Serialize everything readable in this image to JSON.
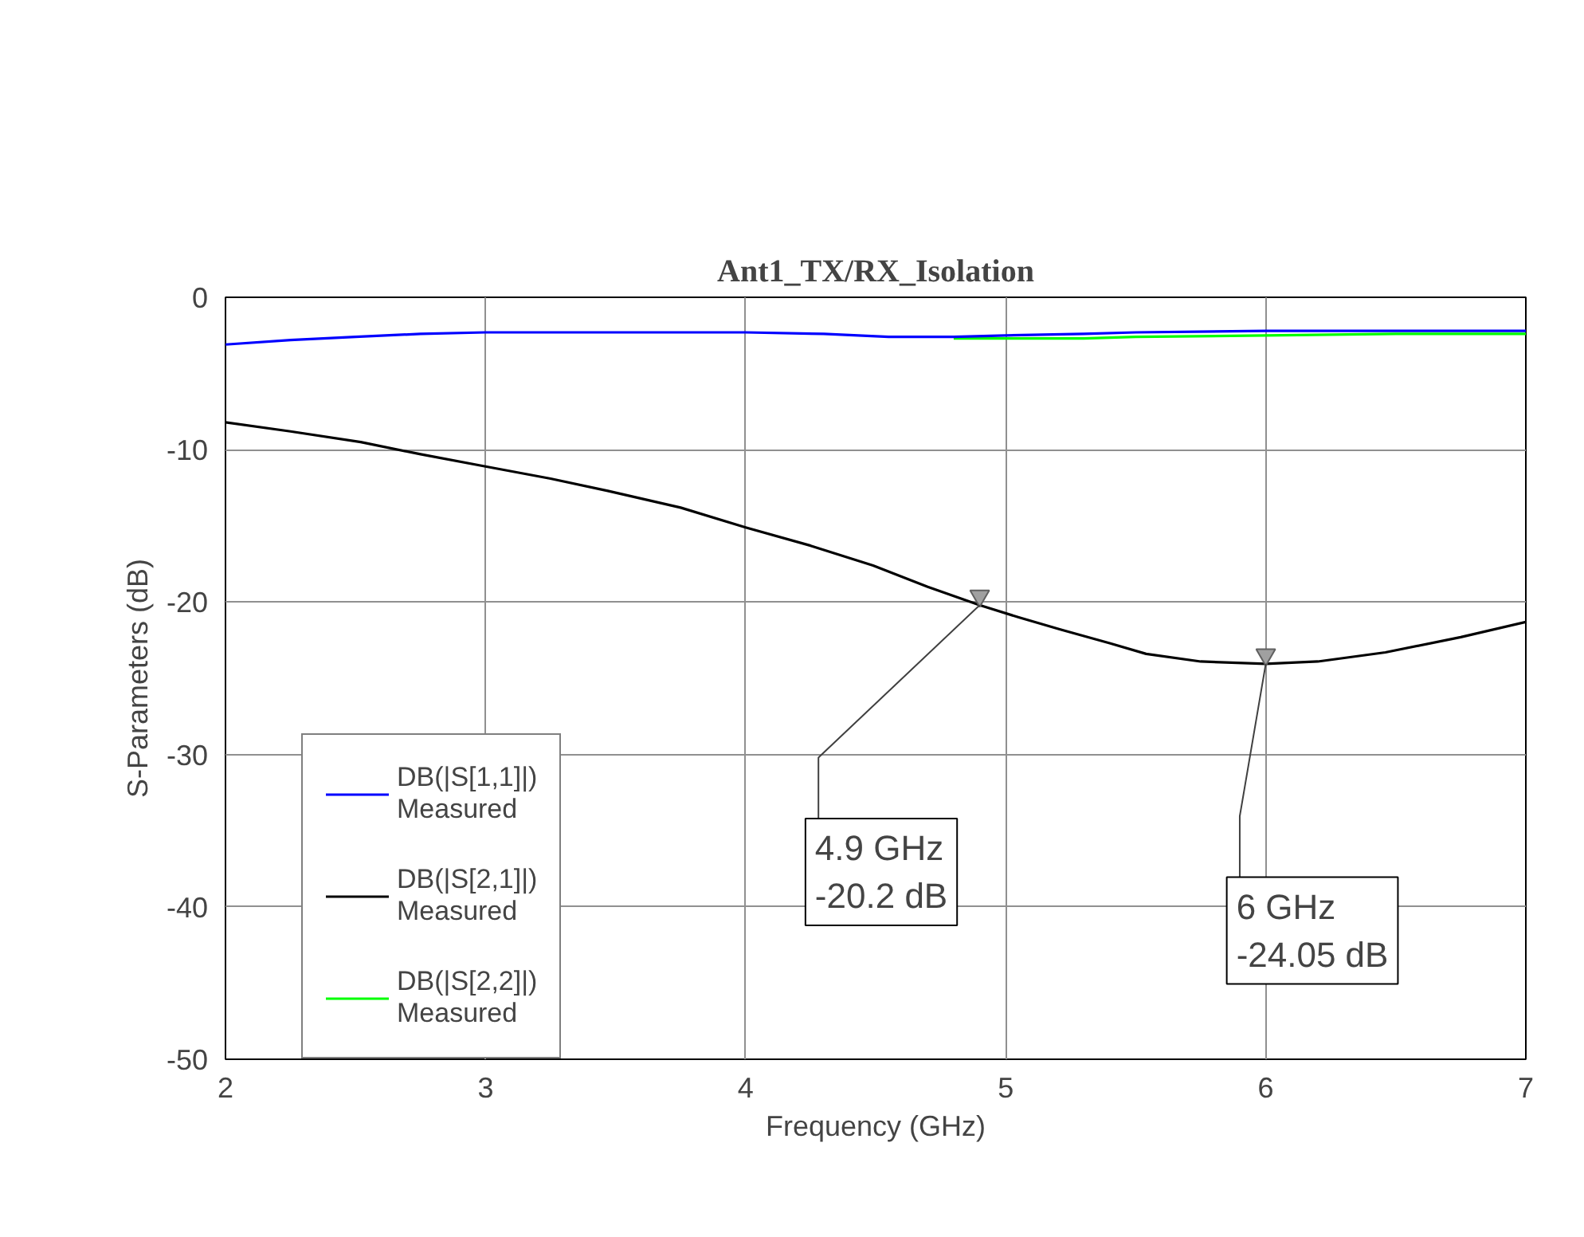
{
  "chart_data": {
    "type": "line",
    "title": "Ant1_TX/RX_Isolation",
    "xlabel": "Frequency (GHz)",
    "ylabel": "S-Parameters (dB)",
    "xlim": [
      2,
      7
    ],
    "ylim": [
      -50,
      0
    ],
    "xticks": [
      2,
      3,
      4,
      5,
      6,
      7
    ],
    "yticks": [
      -50,
      -40,
      -30,
      -20,
      -10,
      0
    ],
    "grid": true,
    "legend": "left",
    "marker": "none",
    "line_style": "solid",
    "series": [
      {
        "name": "DB(|S[1,1]|)\nMeasured",
        "color": "#0000ff",
        "x": [
          2,
          2.25,
          2.5,
          2.75,
          3,
          3.5,
          4,
          4.3,
          4.55,
          4.8,
          5,
          5.3,
          5.5,
          6,
          6.5,
          7
        ],
        "values": [
          -3.1,
          -2.8,
          -2.6,
          -2.4,
          -2.3,
          -2.3,
          -2.3,
          -2.4,
          -2.6,
          -2.6,
          -2.5,
          -2.4,
          -2.3,
          -2.2,
          -2.2,
          -2.2
        ]
      },
      {
        "name": "DB(|S[2,1]|)\nMeasured",
        "color": "#000000",
        "x": [
          2,
          2.25,
          2.52,
          2.75,
          3,
          3.25,
          3.47,
          3.75,
          4,
          4.25,
          4.49,
          4.7,
          4.9,
          5.05,
          5.21,
          5.4,
          5.54,
          5.75,
          6,
          6.2,
          6.46,
          6.75,
          7
        ],
        "values": [
          -8.2,
          -8.8,
          -9.5,
          -10.3,
          -11.1,
          -11.9,
          -12.7,
          -13.8,
          -15.1,
          -16.3,
          -17.6,
          -19.0,
          -20.2,
          -21.0,
          -21.8,
          -22.7,
          -23.4,
          -23.9,
          -24.05,
          -23.9,
          -23.3,
          -22.3,
          -21.3
        ]
      },
      {
        "name": "DB(|S[2,2]|)\nMeasured",
        "color": "#00ff00",
        "x": [
          4.8,
          5,
          5.3,
          5.5,
          6,
          6.5,
          7
        ],
        "values": [
          -2.7,
          -2.7,
          -2.7,
          -2.6,
          -2.5,
          -2.4,
          -2.4
        ]
      }
    ],
    "annotations": [
      {
        "text": "4.9 GHz\n-20.2 dB",
        "x": 4.9,
        "y": -20.2
      },
      {
        "text": "6 GHz\n-24.05 dB",
        "x": 6,
        "y": -24.05
      }
    ]
  }
}
